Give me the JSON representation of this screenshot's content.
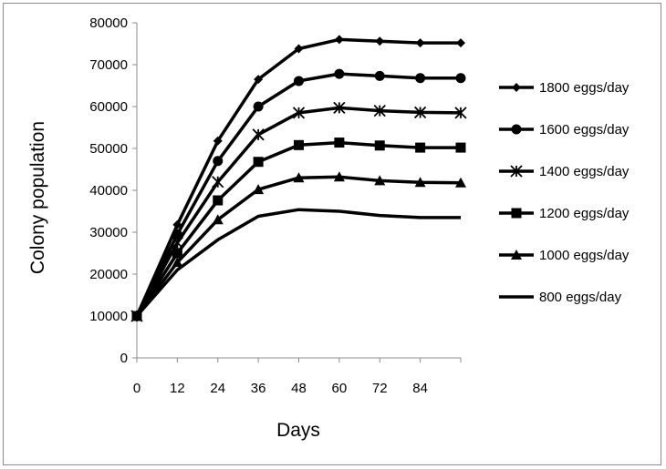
{
  "chart_data": {
    "type": "line",
    "title": "",
    "xlabel": "Days",
    "ylabel": "Colony population",
    "x": [
      0,
      12,
      24,
      36,
      48,
      60,
      72,
      84,
      96
    ],
    "x_tick_labels": [
      "0",
      "12",
      "24",
      "36",
      "48",
      "60",
      "72",
      "84"
    ],
    "xlim": [
      0,
      96
    ],
    "ylim": [
      0,
      80000
    ],
    "y_ticks": [
      0,
      10000,
      20000,
      30000,
      40000,
      50000,
      60000,
      70000,
      80000
    ],
    "grid": false,
    "legend_position": "right",
    "series": [
      {
        "name": "1800 eggs/day",
        "marker": "diamond",
        "values": [
          10000,
          31800,
          51800,
          66500,
          73800,
          76000,
          75600,
          75200,
          75200
        ]
      },
      {
        "name": "1600 eggs/day",
        "marker": "circle",
        "values": [
          10000,
          29500,
          47000,
          60000,
          66100,
          67800,
          67300,
          66800,
          66800
        ]
      },
      {
        "name": "1400 eggs/day",
        "marker": "asterisk",
        "values": [
          10000,
          27500,
          42000,
          53300,
          58500,
          59700,
          59000,
          58600,
          58500
        ]
      },
      {
        "name": "1200 eggs/day",
        "marker": "square",
        "values": [
          10000,
          25000,
          37600,
          46800,
          50800,
          51400,
          50700,
          50200,
          50200
        ]
      },
      {
        "name": "1000 eggs/day",
        "marker": "triangle",
        "values": [
          10000,
          22800,
          33000,
          40200,
          43000,
          43200,
          42300,
          41900,
          41800
        ]
      },
      {
        "name": "800 eggs/day",
        "marker": "none",
        "values": [
          10000,
          21000,
          28200,
          33800,
          35400,
          35000,
          34000,
          33500,
          33500
        ]
      }
    ]
  }
}
